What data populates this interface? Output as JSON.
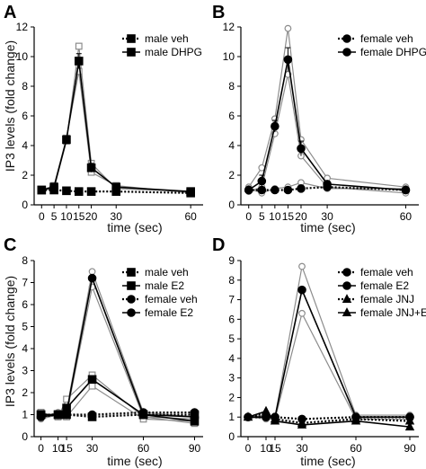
{
  "figure": {
    "ylabel": "IP3 levels (fold change)"
  },
  "chart_data": [
    {
      "panel": "A",
      "type": "line",
      "xlabel": "time (sec)",
      "ylabel": "IP3 levels (fold change)",
      "xticks": [
        0,
        5,
        10,
        15,
        20,
        30,
        60
      ],
      "xtick_labels": [
        "0",
        "5",
        "10",
        "15",
        "20",
        "30",
        "60"
      ],
      "xlim": [
        -3,
        65
      ],
      "yticks": [
        0,
        2,
        4,
        6,
        8,
        10,
        12
      ],
      "ylim": [
        0,
        12
      ],
      "legend_position": "top-right",
      "series": [
        {
          "name": "male veh",
          "marker": "square",
          "dashed": true,
          "x": [
            0,
            5,
            10,
            15,
            20,
            30,
            60
          ],
          "y": [
            1.0,
            1.0,
            0.95,
            0.9,
            0.9,
            0.9,
            0.8
          ]
        },
        {
          "name": "male DHPG",
          "marker": "square",
          "dashed": false,
          "x": [
            0,
            5,
            10,
            15,
            20,
            30,
            60
          ],
          "y": [
            1.0,
            1.2,
            4.4,
            9.7,
            2.5,
            1.2,
            0.9
          ],
          "err": [
            0,
            0.1,
            0.2,
            0.5,
            0.3,
            0.1,
            0.05
          ]
        }
      ],
      "replicates": [
        {
          "marker": "square",
          "x": [
            0,
            5,
            10,
            15,
            20,
            30,
            60
          ],
          "y": [
            1.0,
            1.1,
            4.3,
            10.7,
            2.8,
            1.1,
            0.9
          ]
        },
        {
          "marker": "square",
          "x": [
            0,
            5,
            10,
            15,
            20,
            30,
            60
          ],
          "y": [
            1.0,
            1.3,
            4.5,
            9.0,
            2.2,
            1.3,
            0.8
          ]
        }
      ]
    },
    {
      "panel": "B",
      "type": "line",
      "xlabel": "time (sec)",
      "ylabel": "",
      "xticks": [
        0,
        5,
        10,
        15,
        20,
        30,
        60
      ],
      "xtick_labels": [
        "0",
        "5",
        "10",
        "15",
        "20",
        "30",
        "60"
      ],
      "xlim": [
        -3,
        65
      ],
      "yticks": [
        0,
        2,
        4,
        6,
        8,
        10,
        12
      ],
      "ylim": [
        0,
        12
      ],
      "legend_position": "top-right",
      "series": [
        {
          "name": "female veh",
          "marker": "circle",
          "dashed": true,
          "x": [
            0,
            5,
            10,
            15,
            20,
            30,
            60
          ],
          "y": [
            1.0,
            1.0,
            1.0,
            1.0,
            1.1,
            1.2,
            1.0
          ]
        },
        {
          "name": "female DHPG",
          "marker": "circle",
          "dashed": false,
          "x": [
            0,
            5,
            10,
            15,
            20,
            30,
            60
          ],
          "y": [
            1.0,
            1.6,
            5.3,
            9.8,
            3.8,
            1.4,
            1.0
          ],
          "err": [
            0,
            0.4,
            0.4,
            0.8,
            0.5,
            0.2,
            0.1
          ]
        }
      ],
      "replicates": [
        {
          "marker": "circle",
          "x": [
            0,
            5,
            10,
            15,
            20,
            30,
            60
          ],
          "y": [
            1.2,
            2.5,
            5.8,
            11.9,
            4.4,
            1.8,
            1.2
          ]
        },
        {
          "marker": "circle",
          "x": [
            0,
            5,
            10,
            15,
            20,
            30,
            60
          ],
          "y": [
            0.9,
            1.2,
            4.8,
            8.8,
            3.3,
            1.2,
            0.8
          ]
        },
        {
          "marker": "circle",
          "x": [
            0,
            5,
            10,
            15,
            20,
            30,
            60
          ],
          "y": [
            1.1,
            0.8,
            1.1,
            1.2,
            1.5,
            1.1,
            1.1
          ]
        }
      ]
    },
    {
      "panel": "C",
      "type": "line",
      "xlabel": "time (sec)",
      "ylabel": "IP3 levels (fold change)",
      "xticks": [
        0,
        10,
        15,
        30,
        60,
        90
      ],
      "xtick_labels": [
        "0",
        "10",
        "15",
        "30",
        "60",
        "90"
      ],
      "xlim": [
        -4,
        95
      ],
      "yticks": [
        0,
        1,
        2,
        3,
        4,
        5,
        6,
        7,
        8
      ],
      "ylim": [
        0,
        8
      ],
      "legend_position": "top-right",
      "series": [
        {
          "name": "male veh",
          "marker": "square",
          "dashed": true,
          "x": [
            0,
            10,
            15,
            30,
            60,
            90
          ],
          "y": [
            1.0,
            1.0,
            1.0,
            0.9,
            1.0,
            1.0
          ]
        },
        {
          "name": "male E2",
          "marker": "square",
          "dashed": false,
          "x": [
            0,
            10,
            15,
            30,
            60,
            90
          ],
          "y": [
            1.0,
            1.0,
            1.3,
            2.6,
            1.0,
            0.7
          ]
        },
        {
          "name": "female veh",
          "marker": "circle",
          "dashed": true,
          "x": [
            0,
            10,
            15,
            30,
            60,
            90
          ],
          "y": [
            0.9,
            1.0,
            1.0,
            1.0,
            1.1,
            1.1
          ]
        },
        {
          "name": "female E2",
          "marker": "circle",
          "dashed": false,
          "x": [
            0,
            10,
            15,
            30,
            60,
            90
          ],
          "y": [
            0.9,
            1.0,
            1.1,
            7.2,
            1.0,
            0.9
          ]
        }
      ],
      "replicates": [
        {
          "marker": "circle",
          "x": [
            0,
            10,
            15,
            30,
            60,
            90
          ],
          "y": [
            0.9,
            1.1,
            1.2,
            7.5,
            1.1,
            0.9
          ]
        },
        {
          "marker": "circle",
          "x": [
            0,
            10,
            15,
            30,
            60,
            90
          ],
          "y": [
            0.8,
            1.0,
            1.0,
            6.8,
            0.9,
            0.8
          ]
        },
        {
          "marker": "square",
          "x": [
            0,
            10,
            15,
            30,
            60,
            90
          ],
          "y": [
            1.1,
            0.9,
            1.7,
            2.8,
            0.9,
            0.6
          ]
        },
        {
          "marker": "square",
          "x": [
            0,
            10,
            15,
            30,
            60,
            90
          ],
          "y": [
            1.1,
            0.9,
            0.9,
            2.3,
            0.8,
            0.7
          ]
        }
      ]
    },
    {
      "panel": "D",
      "type": "line",
      "xlabel": "time (sec)",
      "ylabel": "",
      "xticks": [
        0,
        10,
        15,
        30,
        60,
        90
      ],
      "xtick_labels": [
        "0",
        "10",
        "15",
        "30",
        "60",
        "90"
      ],
      "xlim": [
        -4,
        95
      ],
      "yticks": [
        0,
        1,
        2,
        3,
        4,
        5,
        6,
        7,
        8,
        9
      ],
      "ylim": [
        0,
        9
      ],
      "legend_position": "top-right",
      "series": [
        {
          "name": "female veh",
          "marker": "circle",
          "dashed": true,
          "x": [
            0,
            10,
            15,
            30,
            60,
            90
          ],
          "y": [
            1.0,
            1.0,
            1.0,
            0.9,
            1.0,
            1.0
          ]
        },
        {
          "name": "female E2",
          "marker": "circle",
          "dashed": false,
          "x": [
            0,
            10,
            15,
            30,
            60,
            90
          ],
          "y": [
            1.0,
            1.0,
            1.0,
            7.5,
            1.0,
            1.0
          ]
        },
        {
          "name": "female JNJ",
          "marker": "triangle",
          "dashed": true,
          "x": [
            0,
            10,
            15,
            30,
            60,
            90
          ],
          "y": [
            1.0,
            1.2,
            0.9,
            0.7,
            0.9,
            0.8
          ]
        },
        {
          "name": "female JNJ+E2",
          "marker": "triangle",
          "dashed": false,
          "x": [
            0,
            10,
            15,
            30,
            60,
            90
          ],
          "y": [
            1.0,
            1.3,
            0.8,
            0.6,
            0.8,
            0.5
          ]
        }
      ],
      "replicates": [
        {
          "marker": "circle",
          "x": [
            0,
            10,
            15,
            30,
            60,
            90
          ],
          "y": [
            1.0,
            1.1,
            1.0,
            8.7,
            1.1,
            1.1
          ]
        },
        {
          "marker": "circle",
          "x": [
            0,
            10,
            15,
            30,
            60,
            90
          ],
          "y": [
            1.0,
            0.9,
            0.9,
            6.3,
            0.9,
            0.9
          ]
        }
      ]
    }
  ]
}
